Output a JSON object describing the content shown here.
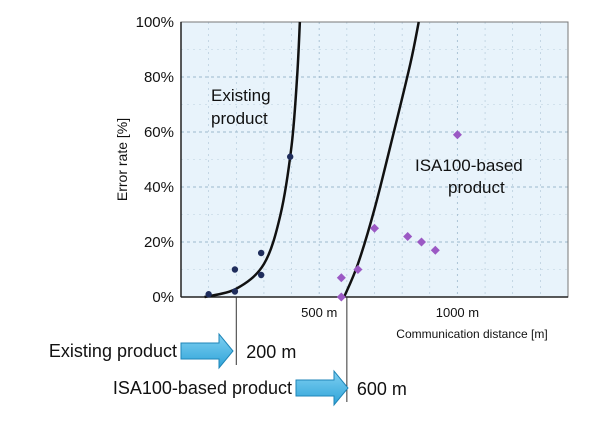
{
  "chart_data": {
    "type": "scatter",
    "ylabel": "Error rate [%]",
    "xlabel": "Communication distance [m]",
    "xlim": [
      0,
      1400
    ],
    "ylim": [
      0,
      100
    ],
    "y_ticks": [
      "0%",
      "20%",
      "40%",
      "60%",
      "80%",
      "100%"
    ],
    "x_ticks": [
      {
        "value": 500,
        "label": "500 m"
      },
      {
        "value": 1000,
        "label": "1000 m"
      }
    ],
    "grid": true,
    "series": [
      {
        "name": "Existing product",
        "marker": "circle",
        "color": "#1f2d5c",
        "points": [
          {
            "x": 100,
            "y": 1
          },
          {
            "x": 195,
            "y": 2
          },
          {
            "x": 195,
            "y": 10
          },
          {
            "x": 290,
            "y": 8
          },
          {
            "x": 290,
            "y": 16
          },
          {
            "x": 395,
            "y": 51
          }
        ],
        "curve": [
          {
            "x": 85,
            "y": 0
          },
          {
            "x": 200,
            "y": 3
          },
          {
            "x": 300,
            "y": 12
          },
          {
            "x": 360,
            "y": 30
          },
          {
            "x": 400,
            "y": 55
          },
          {
            "x": 420,
            "y": 80
          },
          {
            "x": 430,
            "y": 100
          }
        ]
      },
      {
        "name": "ISA100-based product",
        "marker": "diamond",
        "color": "#9b59c4",
        "points": [
          {
            "x": 580,
            "y": 0
          },
          {
            "x": 580,
            "y": 7
          },
          {
            "x": 640,
            "y": 10
          },
          {
            "x": 700,
            "y": 25
          },
          {
            "x": 820,
            "y": 22
          },
          {
            "x": 870,
            "y": 20
          },
          {
            "x": 920,
            "y": 17
          },
          {
            "x": 1000,
            "y": 59
          }
        ],
        "curve": [
          {
            "x": 590,
            "y": 0
          },
          {
            "x": 640,
            "y": 12
          },
          {
            "x": 700,
            "y": 32
          },
          {
            "x": 770,
            "y": 60
          },
          {
            "x": 830,
            "y": 85
          },
          {
            "x": 860,
            "y": 100
          }
        ]
      }
    ],
    "annotations": [
      {
        "text_lines": [
          "Existing",
          "product"
        ]
      },
      {
        "text_lines": [
          "ISA100-based",
          "product"
        ]
      }
    ],
    "comparison_rows": [
      {
        "label": "Existing product",
        "value": "200 m",
        "marker_x": 200
      },
      {
        "label": "ISA100-based product",
        "value": "600 m",
        "marker_x": 600
      }
    ]
  },
  "colors": {
    "plot_bg": "#e8f3fb",
    "grid": "#9db8cc",
    "arrow": "#2ea3d8",
    "existing": "#1f2d5c",
    "isa": "#9b59c4"
  }
}
